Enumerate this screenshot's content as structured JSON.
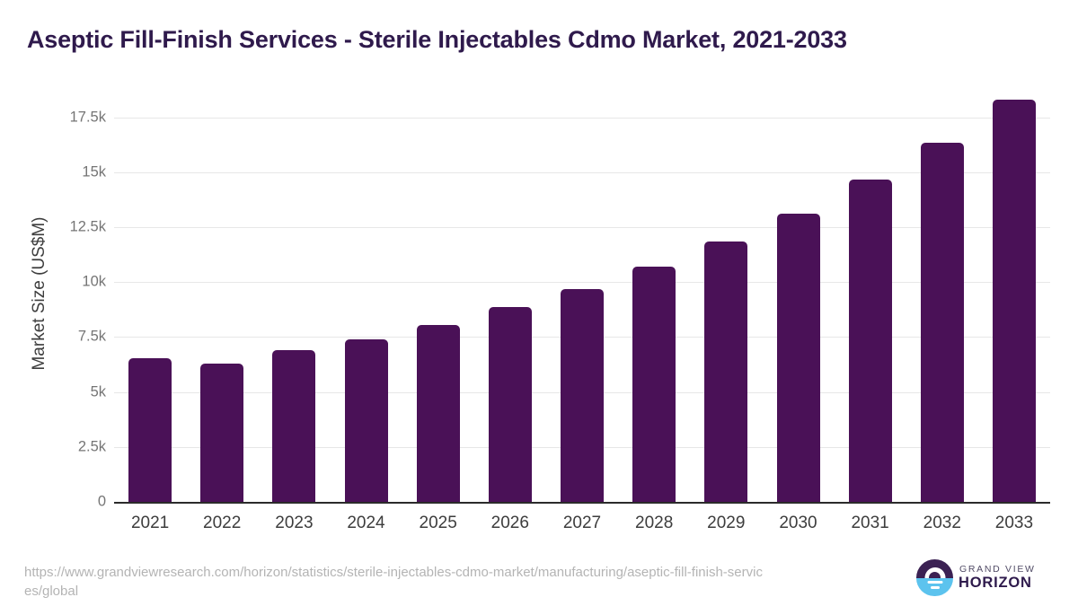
{
  "header": {
    "title": "Aseptic Fill-Finish Services - Sterile Injectables Cdmo Market, 2021-2033"
  },
  "chart_data": {
    "type": "bar",
    "title": "Aseptic Fill-Finish Services - Sterile Injectables Cdmo Market, 2021-2033",
    "categories": [
      "2021",
      "2022",
      "2023",
      "2024",
      "2025",
      "2026",
      "2027",
      "2028",
      "2029",
      "2030",
      "2031",
      "2032",
      "2033"
    ],
    "values": [
      6550,
      6300,
      6900,
      7400,
      8050,
      8850,
      9700,
      10700,
      11850,
      13100,
      14650,
      16350,
      18300
    ],
    "xlabel": "",
    "ylabel": "Market Size (US$M)",
    "unit": "US$M",
    "ylim": [
      0,
      18950
    ],
    "yticks": [
      0,
      2500,
      5000,
      7500,
      10000,
      12500,
      15000,
      17500
    ],
    "ytick_labels": [
      "0",
      "2.5k",
      "5k",
      "7.5k",
      "10k",
      "12.5k",
      "15k",
      "17.5k"
    ],
    "grid": "horizontal",
    "legend": "none",
    "bar_color": "#4a1157"
  },
  "footer": {
    "source_url_line1": "https://www.grandviewresearch.com/horizon/statistics/sterile-injectables-cdmo-market/manufacturing/aseptic-fill-finish-servic",
    "source_url_line2": "es/global",
    "logo": {
      "top_text": "GRAND VIEW",
      "bottom_text": "HORIZON"
    }
  },
  "colors": {
    "title": "#2f1a4c",
    "bar": "#4a1157",
    "gridline": "#e7e7e7",
    "axis_line": "#2b2b2b",
    "y_tick_text": "#757575",
    "x_tick_text": "#3d3d3d",
    "url_text": "#b4b4b4",
    "logo_purple": "#3b2153",
    "logo_blue": "#5cc3ee"
  }
}
